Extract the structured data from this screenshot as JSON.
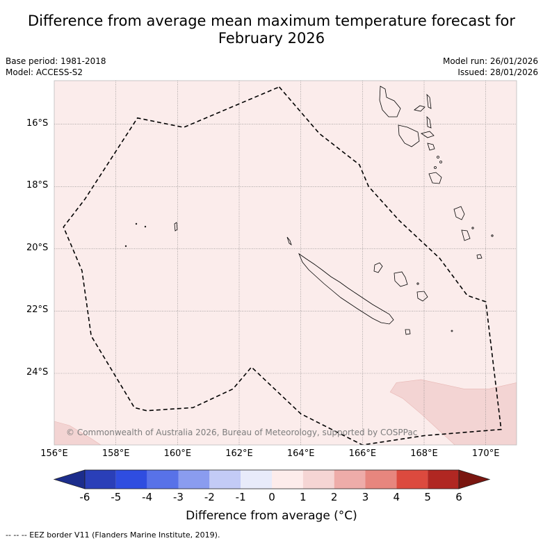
{
  "title_line1": "Difference from average mean maximum temperature forecast for",
  "title_line2": "February 2026",
  "base_period": "Base period: 1981-2018",
  "model": "Model: ACCESS-S2",
  "model_run": "Model run: 26/01/2026",
  "issued": "Issued: 28/01/2026",
  "copyright": "© Commonwealth of Australia 2026, Bureau of Meteorology, supported by COSPPac",
  "lat_labels": [
    "16°S",
    "18°S",
    "20°S",
    "22°S",
    "24°S"
  ],
  "lon_labels": [
    "156°E",
    "158°E",
    "160°E",
    "162°E",
    "164°E",
    "166°E",
    "168°E",
    "170°E"
  ],
  "colorbar": {
    "ticks": [
      "-6",
      "-5",
      "-4",
      "-3",
      "-2",
      "-1",
      "0",
      "1",
      "2",
      "3",
      "4",
      "5",
      "6"
    ],
    "colors": [
      "#1c2d8c",
      "#2a3fb8",
      "#2f4de0",
      "#5872e8",
      "#8a9cef",
      "#c3cbf6",
      "#e8ebfa",
      "#fdeceb",
      "#f5d5d4",
      "#eeaca9",
      "#e7867e",
      "#dc4a3e",
      "#b02722",
      "#7a1610"
    ],
    "title": "Difference from average (°C)"
  },
  "footnote": "--  --  -- EEZ border V11 (Flanders Marine Institute, 2019).",
  "colors": {
    "map_background": "#fbeceb",
    "warm_region": "#f3d4d3"
  },
  "map_data": {
    "lon_range": [
      156,
      171
    ],
    "lat_range": [
      -26.3,
      -14.6
    ],
    "gridlines_lon": [
      158,
      160,
      162,
      164,
      166,
      168,
      170
    ],
    "gridlines_lat": [
      -16,
      -18,
      -20,
      -22,
      -24
    ],
    "eez_border": [
      [
        163.3,
        -14.8
      ],
      [
        164.6,
        -16.3
      ],
      [
        165.9,
        -17.3
      ],
      [
        166.2,
        -18.0
      ],
      [
        167.2,
        -19.1
      ],
      [
        168.5,
        -20.3
      ],
      [
        169.4,
        -21.5
      ],
      [
        170.0,
        -21.7
      ],
      [
        170.5,
        -25.8
      ],
      [
        168.0,
        -26.0
      ],
      [
        166.0,
        -26.3
      ],
      [
        164.0,
        -25.3
      ],
      [
        162.4,
        -23.8
      ],
      [
        161.8,
        -24.5
      ],
      [
        160.5,
        -25.1
      ],
      [
        159.0,
        -25.2
      ],
      [
        158.6,
        -25.1
      ],
      [
        157.2,
        -22.8
      ],
      [
        156.9,
        -20.7
      ],
      [
        156.3,
        -19.3
      ],
      [
        157.0,
        -18.4
      ],
      [
        158.7,
        -15.8
      ],
      [
        160.2,
        -16.1
      ]
    ],
    "warm_anomaly_region": [
      [
        167.1,
        -24.3
      ],
      [
        167.9,
        -24.2
      ],
      [
        169.3,
        -24.5
      ],
      [
        170.1,
        -24.5
      ],
      [
        171.0,
        -24.3
      ],
      [
        171.0,
        -26.3
      ],
      [
        169.0,
        -26.3
      ],
      [
        167.9,
        -25.3
      ],
      [
        167.3,
        -24.8
      ],
      [
        166.9,
        -24.6
      ]
    ]
  }
}
